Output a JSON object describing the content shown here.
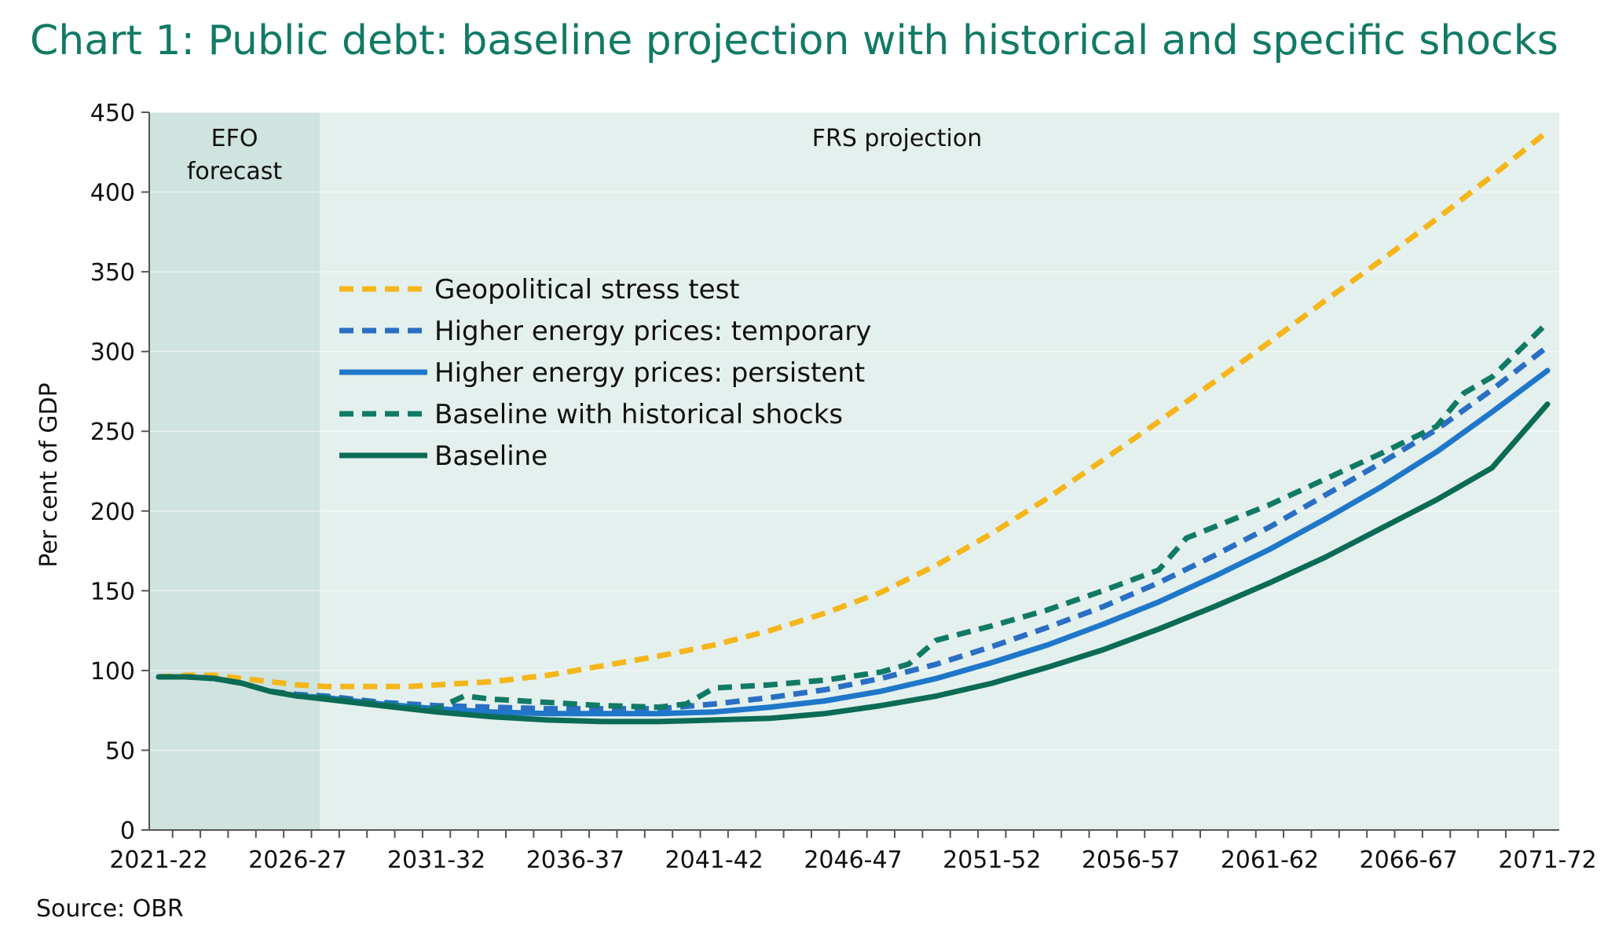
{
  "title": "Chart 1: Public debt: baseline projection with historical and specific shocks",
  "source": "Source: OBR",
  "chart_data": {
    "type": "line",
    "title": "Chart 1: Public debt: baseline projection with historical and specific shocks",
    "xlabel": "",
    "ylabel": "Per cent of GDP",
    "ylim": [
      0,
      450
    ],
    "yticks": [
      0,
      50,
      100,
      150,
      200,
      250,
      300,
      350,
      400,
      450
    ],
    "xtick_labels": [
      "2021-22",
      "2026-27",
      "2031-32",
      "2036-37",
      "2041-42",
      "2046-47",
      "2051-52",
      "2056-57",
      "2061-62",
      "2066-67",
      "2071-72"
    ],
    "x_start_year": 2021,
    "x_end_year": 2071,
    "regions": [
      {
        "label": "EFO forecast",
        "label_lines": [
          "EFO",
          "forecast"
        ],
        "from_year": 2021,
        "to_year": 2026.8,
        "color": "#cfe3df"
      },
      {
        "label": "FRS projection",
        "label_lines": [
          "FRS projection"
        ],
        "from_year": 2026.8,
        "to_year": 2071.4,
        "color": "#e4f0ed"
      }
    ],
    "legend_position": "upper-left",
    "series": [
      {
        "name": "Geopolitical stress test",
        "color": "#f4b61a",
        "style": "dashed",
        "x": [
          2021,
          2022,
          2023,
          2024,
          2025,
          2026,
          2027,
          2028,
          2029,
          2030,
          2031,
          2033,
          2035,
          2037,
          2039,
          2041,
          2043,
          2045,
          2047,
          2049,
          2051,
          2053,
          2055,
          2057,
          2059,
          2061,
          2063,
          2065,
          2067,
          2069,
          2071
        ],
        "values": [
          96,
          97,
          97,
          95,
          93,
          91,
          90,
          90,
          90,
          90,
          91,
          93,
          97,
          103,
          109,
          116,
          125,
          136,
          149,
          166,
          186,
          208,
          232,
          256,
          281,
          306,
          332,
          357,
          383,
          410,
          438
        ]
      },
      {
        "name": "Higher energy prices: temporary",
        "color": "#2a6fc4",
        "style": "dashed",
        "x": [
          2021,
          2022,
          2023,
          2024,
          2025,
          2026,
          2027,
          2028,
          2029,
          2031,
          2033,
          2035,
          2037,
          2039,
          2041,
          2043,
          2045,
          2047,
          2049,
          2051,
          2053,
          2055,
          2057,
          2059,
          2061,
          2063,
          2065,
          2067,
          2069,
          2071
        ],
        "values": [
          96,
          96,
          95,
          92,
          87,
          85,
          84,
          82,
          80,
          78,
          77,
          76,
          76,
          76,
          79,
          83,
          88,
          95,
          104,
          115,
          127,
          140,
          155,
          172,
          190,
          210,
          230,
          251,
          276,
          303
        ]
      },
      {
        "name": "Higher energy prices: persistent",
        "color": "#1f77c9",
        "style": "solid",
        "x": [
          2021,
          2022,
          2023,
          2024,
          2025,
          2026,
          2027,
          2028,
          2029,
          2031,
          2033,
          2035,
          2037,
          2039,
          2041,
          2043,
          2045,
          2047,
          2049,
          2051,
          2053,
          2055,
          2057,
          2059,
          2061,
          2063,
          2065,
          2067,
          2069,
          2071
        ],
        "values": [
          96,
          96,
          95,
          92,
          87,
          84,
          83,
          81,
          79,
          76,
          74,
          73,
          73,
          73,
          74,
          77,
          81,
          87,
          95,
          105,
          116,
          129,
          143,
          159,
          176,
          195,
          215,
          237,
          262,
          288
        ]
      },
      {
        "name": "Baseline with historical shocks",
        "color": "#117a65",
        "style": "dashed",
        "x": [
          2021,
          2022,
          2023,
          2024,
          2025,
          2026,
          2027,
          2028,
          2029,
          2030,
          2031,
          2032,
          2033,
          2035,
          2037,
          2039,
          2040,
          2041,
          2043,
          2045,
          2047,
          2048,
          2049,
          2051,
          2053,
          2055,
          2057,
          2058,
          2059,
          2061,
          2063,
          2065,
          2067,
          2068,
          2069,
          2071
        ],
        "values": [
          96,
          96,
          95,
          92,
          87,
          84,
          83,
          81,
          79,
          77,
          76,
          84,
          82,
          80,
          78,
          77,
          79,
          89,
          91,
          94,
          99,
          104,
          119,
          128,
          138,
          150,
          163,
          183,
          190,
          204,
          220,
          236,
          253,
          274,
          284,
          318
        ]
      },
      {
        "name": "Baseline",
        "color": "#0b6b55",
        "style": "solid",
        "x": [
          2021,
          2022,
          2023,
          2024,
          2025,
          2026,
          2027,
          2028,
          2029,
          2031,
          2033,
          2035,
          2037,
          2039,
          2041,
          2043,
          2045,
          2047,
          2049,
          2051,
          2053,
          2055,
          2057,
          2059,
          2061,
          2063,
          2065,
          2067,
          2069,
          2071
        ],
        "values": [
          96,
          96,
          95,
          92,
          87,
          84,
          82,
          80,
          78,
          74,
          71,
          69,
          68,
          68,
          69,
          70,
          73,
          78,
          84,
          92,
          102,
          113,
          126,
          140,
          155,
          171,
          189,
          207,
          227,
          267
        ]
      }
    ]
  }
}
